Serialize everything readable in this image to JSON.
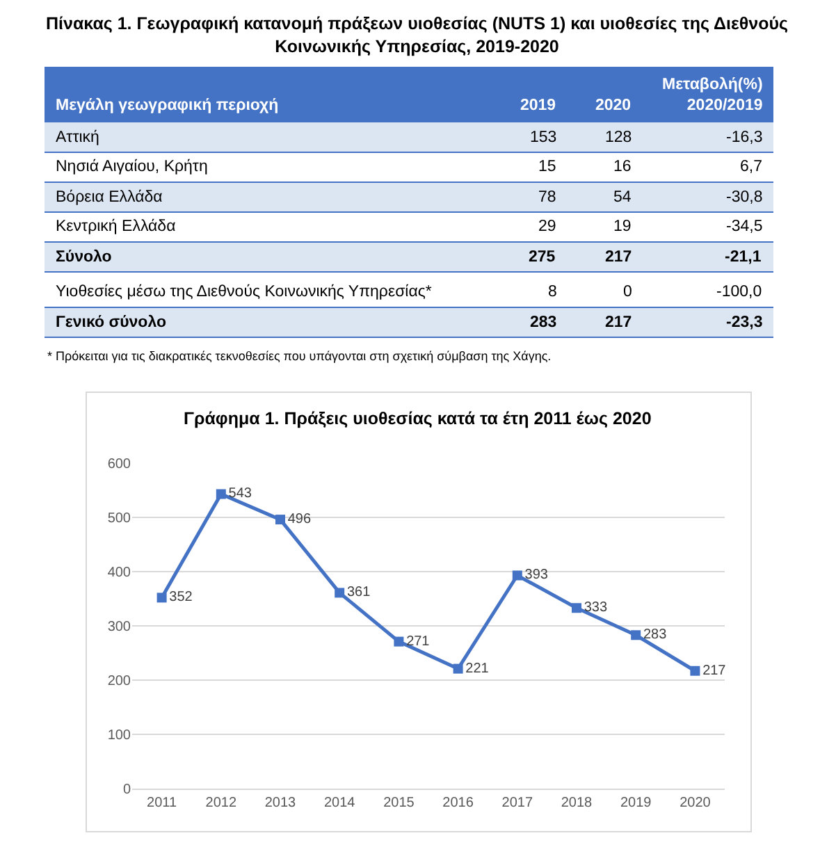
{
  "chart_data": [
    {
      "type": "other",
      "title": "Πίνακας 1. Γεωγραφική κατανομή πράξεων υιοθεσίας (NUTS 1) και υιοθεσίες της Διεθνούς\nΚοινωνικής Υπηρεσίας, 2019-2020",
      "annotations": [
        "Μεγάλη γεωγραφική περιοχή",
        "2019",
        "2020",
        "Μεταβολή(%)\n2020/2019",
        "Αττική",
        "153",
        "128",
        "-16,3",
        "Νησιά Αιγαίου, Κρήτη",
        "15",
        "16",
        "6,7",
        "Βόρεια Ελλάδα",
        "78",
        "54",
        "-30,8",
        "Κεντρική Ελλάδα",
        "29",
        "19",
        "-34,5",
        "Σύνολο",
        "275",
        "217",
        "-21,1",
        "Υιοθεσίες μέσω της Διεθνούς Κοινωνικής Υπηρεσίας*",
        "8",
        "0",
        "-100,0",
        "Γενικό σύνολο",
        "283",
        "217",
        "-23,3",
        "* Πρόκειται για τις διακρατικές τεκνοθεσίες που υπάγονται στη σχετική σύμβαση της Χάγης."
      ]
    },
    {
      "type": "line",
      "title": "Γράφημα 1. Πράξεις υιοθεσίας κατά τα έτη 2011 έως 2020",
      "categories": [
        "2011",
        "2012",
        "2013",
        "2014",
        "2015",
        "2016",
        "2017",
        "2018",
        "2019",
        "2020"
      ],
      "values": [
        352,
        543,
        496,
        361,
        271,
        221,
        393,
        333,
        283,
        217
      ],
      "color": "#4472c4",
      "ylim": [
        0,
        600
      ],
      "yticks": [
        0,
        100,
        200,
        300,
        400,
        500,
        600
      ],
      "grid": "y",
      "marker": "square",
      "line_style": "solid",
      "data_labels": true,
      "legend": false
    }
  ]
}
